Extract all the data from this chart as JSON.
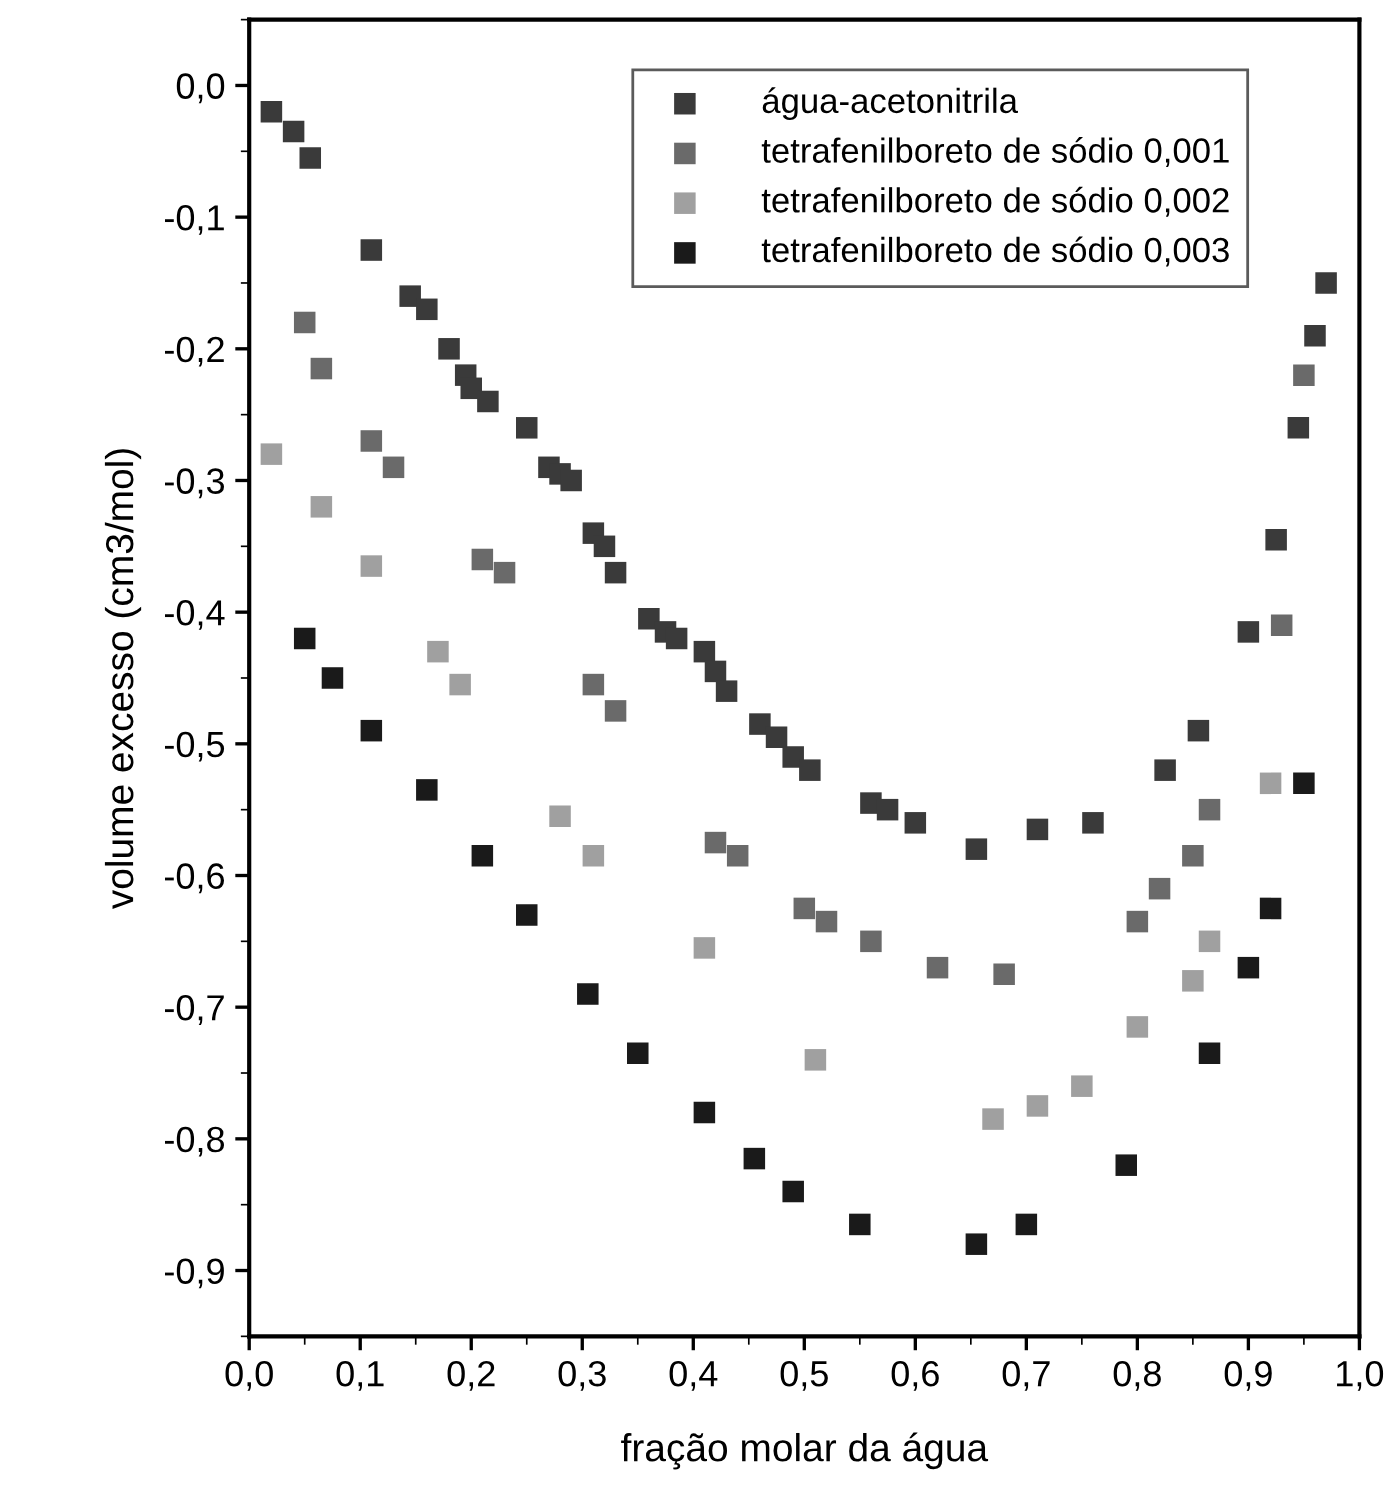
{
  "chart_data": {
    "type": "scatter",
    "xlabel": "fração molar da água",
    "ylabel": "volume excesso (cm3/mol)",
    "xlim": [
      0.0,
      1.0
    ],
    "ylim": [
      -0.95,
      0.05
    ],
    "xticks": [
      {
        "value": 0.0,
        "label": "0,0"
      },
      {
        "value": 0.1,
        "label": "0,1"
      },
      {
        "value": 0.2,
        "label": "0,2"
      },
      {
        "value": 0.3,
        "label": "0,3"
      },
      {
        "value": 0.4,
        "label": "0,4"
      },
      {
        "value": 0.5,
        "label": "0,5"
      },
      {
        "value": 0.6,
        "label": "0,6"
      },
      {
        "value": 0.7,
        "label": "0,7"
      },
      {
        "value": 0.8,
        "label": "0,8"
      },
      {
        "value": 0.9,
        "label": "0,9"
      },
      {
        "value": 1.0,
        "label": "1,0"
      }
    ],
    "yticks": [
      {
        "value": 0.0,
        "label": "0,0"
      },
      {
        "value": -0.1,
        "label": "-0,1"
      },
      {
        "value": -0.2,
        "label": "-0,2"
      },
      {
        "value": -0.3,
        "label": "-0,3"
      },
      {
        "value": -0.4,
        "label": "-0,4"
      },
      {
        "value": -0.5,
        "label": "-0,5"
      },
      {
        "value": -0.6,
        "label": "-0,6"
      },
      {
        "value": -0.7,
        "label": "-0,7"
      },
      {
        "value": -0.8,
        "label": "-0,8"
      },
      {
        "value": -0.9,
        "label": "-0,9"
      }
    ],
    "marker": "square",
    "legend": "top right",
    "grid": false,
    "series": [
      {
        "name": "água-acetonitrila",
        "color": "#3a3a3a",
        "x": [
          0.02,
          0.04,
          0.055,
          0.11,
          0.145,
          0.16,
          0.18,
          0.195,
          0.2,
          0.215,
          0.25,
          0.27,
          0.28,
          0.29,
          0.31,
          0.32,
          0.33,
          0.36,
          0.375,
          0.385,
          0.41,
          0.42,
          0.43,
          0.46,
          0.475,
          0.49,
          0.505,
          0.56,
          0.575,
          0.6,
          0.655,
          0.71,
          0.76,
          0.825,
          0.855,
          0.9,
          0.925,
          0.945,
          0.96,
          0.97
        ],
        "values": [
          -0.02,
          -0.035,
          -0.055,
          -0.125,
          -0.16,
          -0.17,
          -0.2,
          -0.22,
          -0.23,
          -0.24,
          -0.26,
          -0.29,
          -0.295,
          -0.3,
          -0.34,
          -0.35,
          -0.37,
          -0.405,
          -0.415,
          -0.42,
          -0.43,
          -0.445,
          -0.46,
          -0.485,
          -0.495,
          -0.51,
          -0.52,
          -0.545,
          -0.55,
          -0.56,
          -0.58,
          -0.565,
          -0.56,
          -0.52,
          -0.49,
          -0.415,
          -0.345,
          -0.26,
          -0.19,
          -0.15
        ]
      },
      {
        "name": "tetrafenilboreto de sódio 0,001",
        "color": "#6a6a6a",
        "x": [
          0.05,
          0.065,
          0.11,
          0.13,
          0.21,
          0.23,
          0.31,
          0.33,
          0.42,
          0.44,
          0.5,
          0.52,
          0.56,
          0.62,
          0.68,
          0.8,
          0.82,
          0.85,
          0.865,
          0.93,
          0.95
        ],
        "values": [
          -0.18,
          -0.215,
          -0.27,
          -0.29,
          -0.36,
          -0.37,
          -0.455,
          -0.475,
          -0.575,
          -0.585,
          -0.625,
          -0.635,
          -0.65,
          -0.67,
          -0.675,
          -0.635,
          -0.61,
          -0.585,
          -0.55,
          -0.41,
          -0.22
        ]
      },
      {
        "name": "tetrafenilboreto de sódio 0,002",
        "color": "#a0a0a0",
        "x": [
          0.02,
          0.065,
          0.11,
          0.17,
          0.19,
          0.28,
          0.31,
          0.41,
          0.51,
          0.67,
          0.71,
          0.75,
          0.8,
          0.85,
          0.865,
          0.92
        ],
        "values": [
          -0.28,
          -0.32,
          -0.365,
          -0.43,
          -0.455,
          -0.555,
          -0.585,
          -0.655,
          -0.74,
          -0.785,
          -0.775,
          -0.76,
          -0.715,
          -0.68,
          -0.65,
          -0.53
        ]
      },
      {
        "name": "tetrafenilboreto de sódio 0,003",
        "color": "#1a1a1a",
        "x": [
          0.05,
          0.075,
          0.11,
          0.16,
          0.21,
          0.25,
          0.305,
          0.35,
          0.41,
          0.455,
          0.49,
          0.55,
          0.655,
          0.7,
          0.79,
          0.865,
          0.9,
          0.92,
          0.95
        ],
        "values": [
          -0.42,
          -0.45,
          -0.49,
          -0.535,
          -0.585,
          -0.63,
          -0.69,
          -0.735,
          -0.78,
          -0.815,
          -0.84,
          -0.865,
          -0.88,
          -0.865,
          -0.82,
          -0.735,
          -0.67,
          -0.625,
          -0.53
        ]
      }
    ]
  }
}
